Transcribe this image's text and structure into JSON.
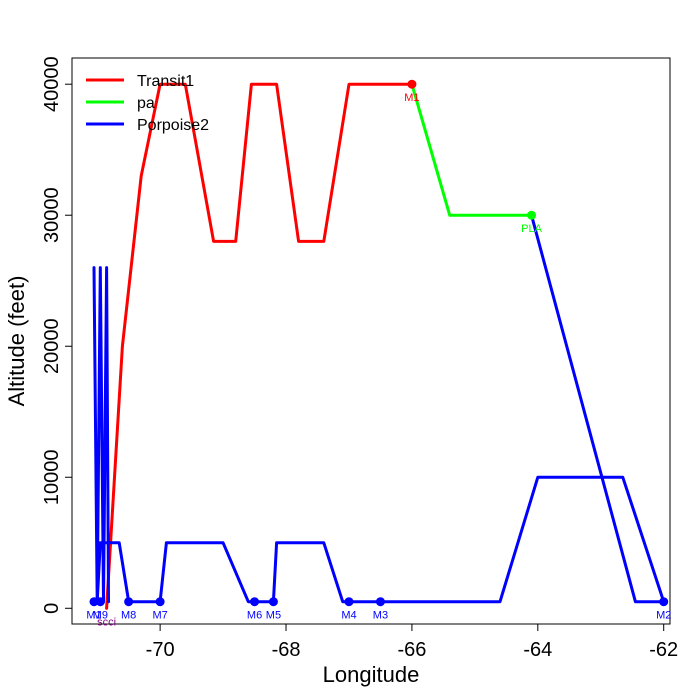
{
  "chart_data": {
    "type": "line",
    "title": "",
    "xlabel": "Longitude",
    "ylabel": "Altitude (feet)",
    "xlim": [
      -71.4,
      -61.9
    ],
    "ylim": [
      -1200,
      42000
    ],
    "x_ticks": [
      -70,
      -68,
      -66,
      -64,
      -62
    ],
    "x_tick_labels": [
      "-70",
      "-68",
      "-66",
      "-64",
      "-62"
    ],
    "y_ticks": [
      0,
      10000,
      20000,
      30000,
      40000
    ],
    "y_tick_labels": [
      "0",
      "10000",
      "20000",
      "30000",
      "40000"
    ],
    "grid": false,
    "legend_position": "top-left",
    "series": [
      {
        "name": "Transit1",
        "color": "#ff0000",
        "x": [
          -70.85,
          -70.6,
          -70.3,
          -70.0,
          -69.9,
          -69.6,
          -69.15,
          -68.8,
          -68.55,
          -68.15,
          -67.8,
          -67.4,
          -67.0,
          -66.0
        ],
        "y": [
          0,
          20000,
          33000,
          40000,
          40000,
          40000,
          28000,
          28000,
          40000,
          40000,
          28000,
          28000,
          40000,
          40000
        ]
      },
      {
        "name": "pa",
        "color": "#00ff00",
        "x": [
          -66.0,
          -65.4,
          -64.1
        ],
        "y": [
          40000,
          30000,
          30000
        ]
      },
      {
        "name": "Porpoise2",
        "color": "#0000ff",
        "x": [
          -64.1,
          -62.45,
          -62.0,
          -62.0,
          -62.65,
          -64.0,
          -64.6,
          -66.0,
          -66.5,
          -67.0,
          -67.1,
          -67.4,
          -68.15,
          -68.2,
          -68.5,
          -68.6,
          -69.0,
          -69.9,
          -70.0,
          -70.5,
          -70.65,
          -70.95,
          -71.0,
          -71.05,
          -71.0,
          -70.95,
          -70.9,
          -70.85,
          -70.82
        ],
        "y": [
          30000,
          500,
          500,
          500,
          10000,
          10000,
          500,
          500,
          500,
          500,
          500,
          5000,
          5000,
          500,
          500,
          500,
          5000,
          5000,
          500,
          500,
          5000,
          5000,
          500,
          26000,
          500,
          26000,
          500,
          26000,
          500
        ]
      }
    ],
    "markers": [
      {
        "label": "M1",
        "x": -66.0,
        "y": 40000,
        "color": "#ff0000"
      },
      {
        "label": "PLA",
        "x": -64.1,
        "y": 30000,
        "color": "#00ff00"
      },
      {
        "label": "M2",
        "x": -62.0,
        "y": 500,
        "color": "#0000ff"
      },
      {
        "label": "M3",
        "x": -66.5,
        "y": 500,
        "color": "#0000ff"
      },
      {
        "label": "M4",
        "x": -67.0,
        "y": 500,
        "color": "#0000ff"
      },
      {
        "label": "M5",
        "x": -68.2,
        "y": 500,
        "color": "#0000ff"
      },
      {
        "label": "M6",
        "x": -68.5,
        "y": 500,
        "color": "#0000ff"
      },
      {
        "label": "M7",
        "x": -70.0,
        "y": 500,
        "color": "#0000ff"
      },
      {
        "label": "M8",
        "x": -70.5,
        "y": 500,
        "color": "#0000ff"
      },
      {
        "label": "M9",
        "x": -70.95,
        "y": 500,
        "color": "#0000ff"
      },
      {
        "label": "M1",
        "x": -71.05,
        "y": 500,
        "color": "#0000ff"
      },
      {
        "label": "scci",
        "x": -70.85,
        "y": 0,
        "color": "#800080"
      }
    ]
  }
}
